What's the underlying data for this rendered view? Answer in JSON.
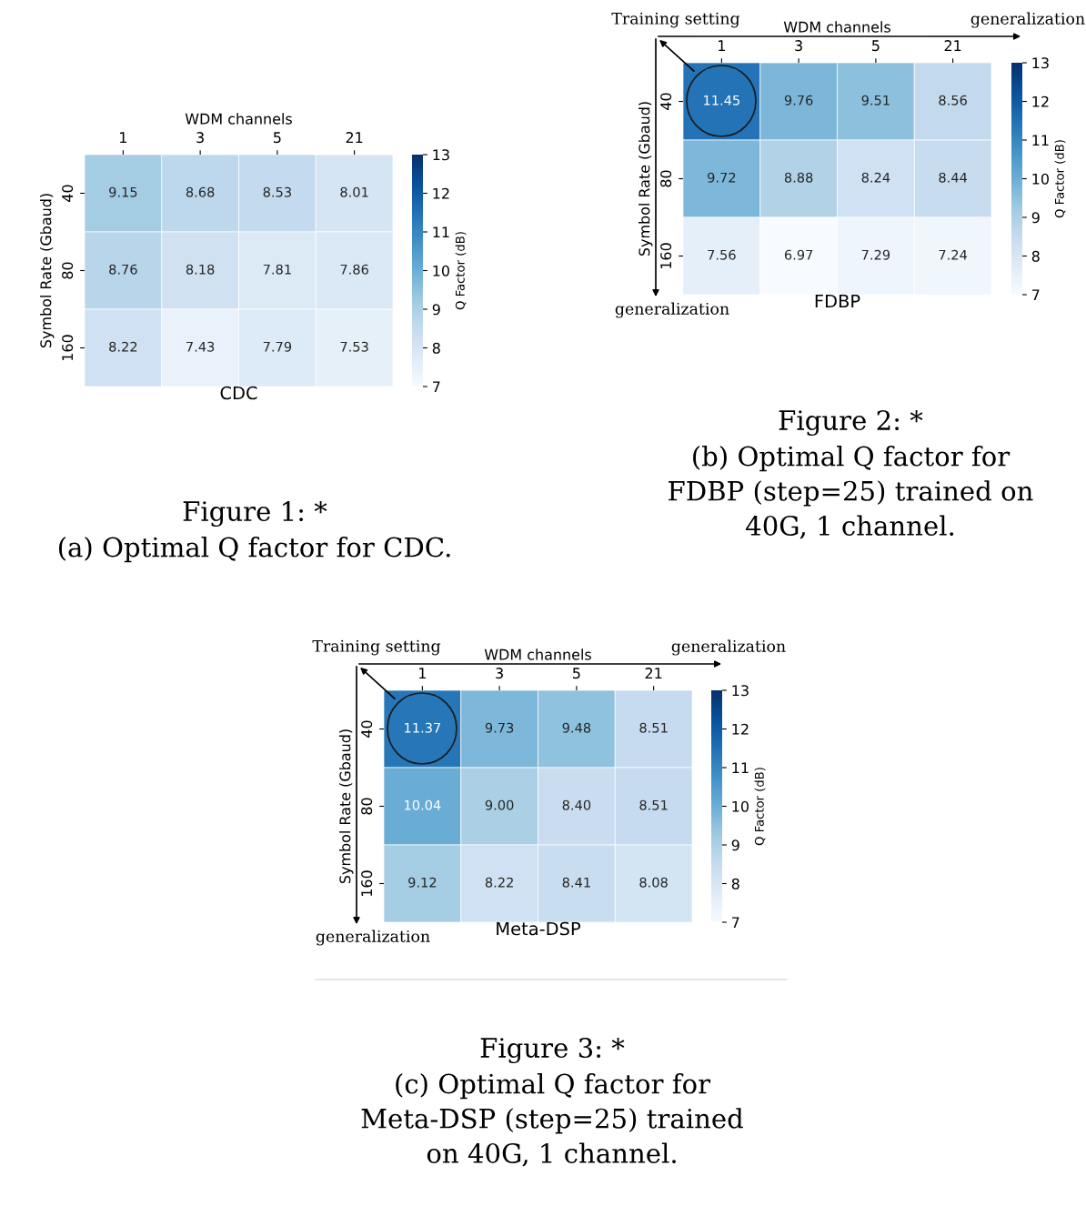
{
  "chart_data": [
    {
      "type": "heatmap",
      "title": "CDC",
      "xlabel": "WDM channels",
      "ylabel": "Symbol Rate (Gbaud)",
      "clabel": "Q Factor (dB)",
      "categories": [
        "1",
        "3",
        "5",
        "21"
      ],
      "y_categories": [
        "40",
        "80",
        "160"
      ],
      "cells": [
        [
          9.15,
          8.68,
          8.53,
          8.01
        ],
        [
          8.76,
          8.18,
          7.81,
          7.86
        ],
        [
          8.22,
          7.43,
          7.79,
          7.53
        ]
      ],
      "clim": [
        7,
        13
      ],
      "cticks": [
        7,
        8,
        9,
        10,
        11,
        12,
        13
      ],
      "data_labels": true,
      "annotations": [
        "Figure 1: *",
        "(a) Optimal Q factor for CDC."
      ]
    },
    {
      "type": "heatmap",
      "title": "FDBP",
      "xlabel": "WDM channels",
      "ylabel": "Symbol Rate (Gbaud)",
      "clabel": "Q Factor (dB)",
      "categories": [
        "1",
        "3",
        "5",
        "21"
      ],
      "y_categories": [
        "40",
        "80",
        "160"
      ],
      "cells": [
        [
          11.45,
          9.76,
          9.51,
          8.56
        ],
        [
          9.72,
          8.88,
          8.24,
          8.44
        ],
        [
          7.56,
          6.97,
          7.29,
          7.24
        ]
      ],
      "clim": [
        7,
        13
      ],
      "cticks": [
        7,
        8,
        9,
        10,
        11,
        12,
        13
      ],
      "data_labels": true,
      "annotations": [
        "Training setting",
        "generalization",
        "generalization",
        "Figure 2: *",
        "(b) Optimal Q factor for\nFDBP (step=25) trained on\n40G, 1 channel."
      ]
    },
    {
      "type": "heatmap",
      "title": "Meta-DSP",
      "xlabel": "WDM channels",
      "ylabel": "Symbol Rate (Gbaud)",
      "clabel": "Q Factor (dB)",
      "categories": [
        "1",
        "3",
        "5",
        "21"
      ],
      "y_categories": [
        "40",
        "80",
        "160"
      ],
      "cells": [
        [
          11.37,
          9.73,
          9.48,
          8.51
        ],
        [
          10.04,
          9.0,
          8.4,
          8.51
        ],
        [
          9.12,
          8.22,
          8.41,
          8.08
        ]
      ],
      "cell_labels": [
        [
          "11.37",
          "9.73",
          "9.48",
          "8.51"
        ],
        [
          "10.04",
          "9.00",
          "8.40",
          "8.51"
        ],
        [
          "9.12",
          "8.22",
          "8.41",
          "8.08"
        ]
      ],
      "clim": [
        7,
        13
      ],
      "cticks": [
        7,
        8,
        9,
        10,
        11,
        12,
        13
      ],
      "data_labels": true,
      "annotations": [
        "Training setting",
        "generalization",
        "generalization",
        "Figure 3: *",
        "(c) Optimal Q factor for\nMeta-DSP (step=25) trained\non 40G, 1 channel."
      ]
    }
  ]
}
